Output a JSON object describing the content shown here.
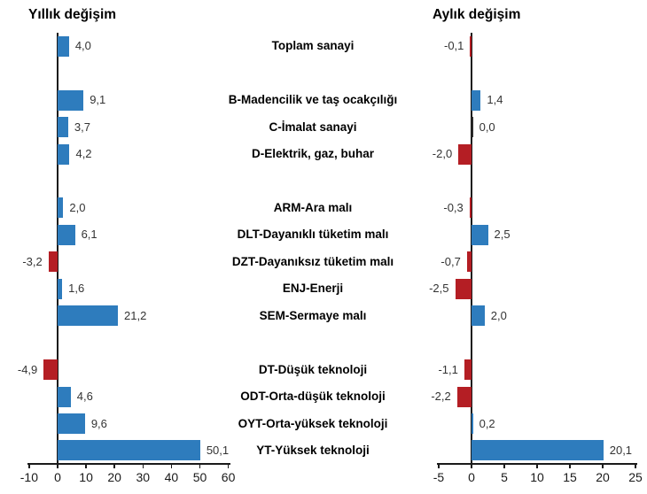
{
  "page": {
    "background": "#ffffff"
  },
  "chart_data": {
    "type": "bar",
    "orientation": "horizontal",
    "title_left": "Yıllık değişim",
    "title_right": "Aylık değişim",
    "categories": [
      "Toplam sanayi",
      "B-Madencilik ve taş ocakçılığı",
      "C-İmalat sanayi",
      "D-Elektrik, gaz, buhar",
      "ARM-Ara malı",
      "DLT-Dayanıklı tüketim malı",
      "DZT-Dayanıksız tüketim malı",
      "ENJ-Enerji",
      "SEM-Sermaye malı",
      "DT-Düşük teknoloji",
      "ODT-Orta-düşük teknoloji",
      "OYT-Orta-yüksek teknoloji",
      "YT-Yüksek teknoloji"
    ],
    "group_sizes": [
      1,
      3,
      5,
      4
    ],
    "series": [
      {
        "name": "Yıllık değişim",
        "values": [
          4.0,
          9.1,
          3.7,
          4.2,
          2.0,
          6.1,
          -3.2,
          1.6,
          21.2,
          -4.9,
          4.6,
          9.6,
          50.1
        ],
        "labels": [
          "4,0",
          "9,1",
          "3,7",
          "4,2",
          "2,0",
          "6,1",
          "-3,2",
          "1,6",
          "21,2",
          "-4,9",
          "4,6",
          "9,6",
          "50,1"
        ],
        "axis_ticks": [
          -10,
          0,
          10,
          20,
          30,
          40,
          50,
          60
        ],
        "xlim": [
          -10,
          60
        ]
      },
      {
        "name": "Aylık değişim",
        "values": [
          -0.1,
          1.4,
          0.0,
          -2.0,
          -0.3,
          2.5,
          -0.7,
          -2.5,
          2.0,
          -1.1,
          -2.2,
          0.2,
          20.1
        ],
        "labels": [
          "-0,1",
          "1,4",
          "0,0",
          "-2,0",
          "-0,3",
          "2,5",
          "-0,7",
          "-2,5",
          "2,0",
          "-1,1",
          "-2,2",
          "0,2",
          "20,1"
        ],
        "axis_ticks": [
          -5,
          0,
          5,
          10,
          15,
          20,
          25
        ],
        "xlim": [
          -5,
          25
        ]
      }
    ],
    "colors": {
      "positive": "#2e7cbd",
      "negative": "#b41e24",
      "zero_bar": "#2b2b2b"
    },
    "legend": "none",
    "grid": false,
    "value_labels": true
  }
}
